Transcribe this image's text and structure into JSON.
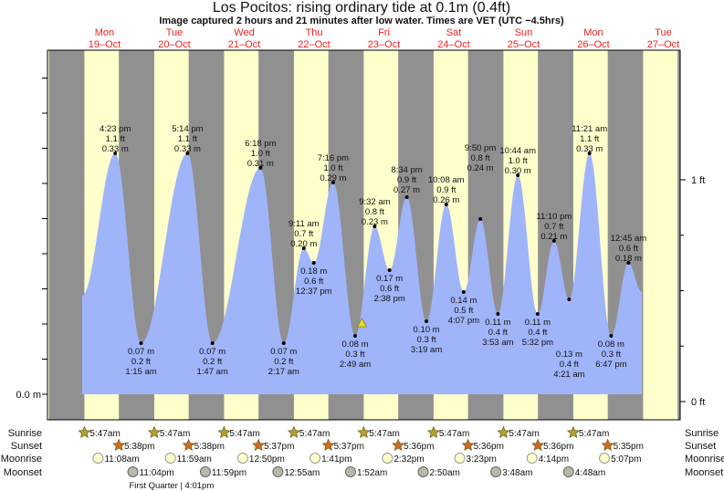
{
  "chart_data": {
    "type": "area",
    "title": "Los Pocitos: rising  ordinary tide at 0.1m (0.4ft)",
    "subtitle": "Image captured 2 hours and 21 minutes after low water. Times are VET (UTC −4.5hrs)",
    "left_axis": {
      "label": "0.0 m",
      "value_m": 0.0
    },
    "right_axis": [
      {
        "label": "1 ft",
        "value_ft": 1
      },
      {
        "label": "0 ft",
        "value_ft": 0
      }
    ],
    "days": [
      {
        "dow": "Mon",
        "date": "19–Oct"
      },
      {
        "dow": "Tue",
        "date": "20–Oct"
      },
      {
        "dow": "Wed",
        "date": "21–Oct"
      },
      {
        "dow": "Thu",
        "date": "22–Oct"
      },
      {
        "dow": "Fri",
        "date": "23–Oct"
      },
      {
        "dow": "Sat",
        "date": "24–Oct"
      },
      {
        "dow": "Sun",
        "date": "25–Oct"
      },
      {
        "dow": "Mon",
        "date": "26–Oct"
      },
      {
        "dow": "Tue",
        "date": "27–Oct"
      }
    ],
    "daylight": {
      "sunrise_h": 5.78,
      "sunset_h": 17.62
    },
    "current_time_day": 4.215,
    "current_level_m": 0.1,
    "extremes": [
      {
        "day": 0,
        "time": "4:23 pm",
        "h": 16.38,
        "m": 0.33,
        "ft": "1.1 ft",
        "type": "high"
      },
      {
        "day": 1,
        "time": "1:15 am",
        "h": 1.25,
        "m": 0.07,
        "ft": "0.2 ft",
        "type": "low"
      },
      {
        "day": 1,
        "time": "5:14 pm",
        "h": 17.23,
        "m": 0.33,
        "ft": "1.1 ft",
        "type": "high"
      },
      {
        "day": 2,
        "time": "1:47 am",
        "h": 1.78,
        "m": 0.07,
        "ft": "0.2 ft",
        "type": "low"
      },
      {
        "day": 2,
        "time": "6:18 pm",
        "h": 18.3,
        "m": 0.31,
        "ft": "1.0 ft",
        "type": "high"
      },
      {
        "day": 3,
        "time": "2:17 am",
        "h": 2.28,
        "m": 0.07,
        "ft": "0.2 ft",
        "type": "low"
      },
      {
        "day": 3,
        "time": "9:11 am",
        "h": 9.18,
        "m": 0.2,
        "ft": "0.7 ft",
        "type": "high"
      },
      {
        "day": 3,
        "time": "12:37 pm",
        "h": 12.62,
        "m": 0.18,
        "ft": "0.6 ft",
        "type": "low"
      },
      {
        "day": 3,
        "time": "7:16 pm",
        "h": 19.27,
        "m": 0.29,
        "ft": "1.0 ft",
        "type": "high"
      },
      {
        "day": 4,
        "time": "2:49 am",
        "h": 2.82,
        "m": 0.08,
        "ft": "0.3 ft",
        "type": "low"
      },
      {
        "day": 4,
        "time": "9:32 am",
        "h": 9.53,
        "m": 0.23,
        "ft": "0.8 ft",
        "type": "high"
      },
      {
        "day": 4,
        "time": "2:38 pm",
        "h": 14.63,
        "m": 0.17,
        "ft": "0.6 ft",
        "type": "low"
      },
      {
        "day": 4,
        "time": "8:34 pm",
        "h": 20.57,
        "m": 0.27,
        "ft": "0.9 ft",
        "type": "high"
      },
      {
        "day": 5,
        "time": "3:19 am",
        "h": 3.32,
        "m": 0.1,
        "ft": "0.3 ft",
        "type": "low"
      },
      {
        "day": 5,
        "time": "10:08 am",
        "h": 10.13,
        "m": 0.26,
        "ft": "0.9 ft",
        "type": "high"
      },
      {
        "day": 5,
        "time": "4:07 pm",
        "h": 16.12,
        "m": 0.14,
        "ft": "0.5 ft",
        "type": "low"
      },
      {
        "day": 5,
        "time": "9:50 pm",
        "h": 21.83,
        "m": 0.24,
        "ft": "0.8 ft",
        "type": "high"
      },
      {
        "day": 6,
        "time": "3:53 am",
        "h": 3.88,
        "m": 0.11,
        "ft": "0.4 ft",
        "type": "low"
      },
      {
        "day": 6,
        "time": "10:44 am",
        "h": 10.73,
        "m": 0.3,
        "ft": "1.0 ft",
        "type": "high"
      },
      {
        "day": 6,
        "time": "5:32 pm",
        "h": 17.53,
        "m": 0.11,
        "ft": "0.4 ft",
        "type": "low"
      },
      {
        "day": 6,
        "time": "11:10 pm",
        "h": 23.17,
        "m": 0.21,
        "ft": "0.7 ft",
        "type": "high"
      },
      {
        "day": 7,
        "time": "4:21 am",
        "h": 4.35,
        "m": 0.13,
        "ft": "0.4 ft",
        "type": "low"
      },
      {
        "day": 7,
        "time": "11:21 am",
        "h": 11.35,
        "m": 0.33,
        "ft": "1.1 ft",
        "type": "high"
      },
      {
        "day": 7,
        "time": "6:47 pm",
        "h": 18.78,
        "m": 0.08,
        "ft": "0.3 ft",
        "type": "low"
      },
      {
        "day": 8,
        "time": "12:45 am",
        "h": 0.75,
        "m": 0.18,
        "ft": "0.6 ft",
        "type": "high"
      }
    ],
    "ephemeris": {
      "labels": {
        "sunrise": "Sunrise",
        "sunset": "Sunset",
        "moonrise": "Moonrise",
        "moonset": "Moonset"
      },
      "sunrise": [
        {
          "day": 0,
          "time": "5:47am"
        },
        {
          "day": 1,
          "time": "5:47am"
        },
        {
          "day": 2,
          "time": "5:47am"
        },
        {
          "day": 3,
          "time": "5:47am"
        },
        {
          "day": 4,
          "time": "5:47am"
        },
        {
          "day": 5,
          "time": "5:47am"
        },
        {
          "day": 6,
          "time": "5:47am"
        },
        {
          "day": 7,
          "time": "5:47am"
        }
      ],
      "sunset": [
        {
          "day": 0,
          "time": "5:38pm"
        },
        {
          "day": 1,
          "time": "5:38pm"
        },
        {
          "day": 2,
          "time": "5:37pm"
        },
        {
          "day": 3,
          "time": "5:37pm"
        },
        {
          "day": 4,
          "time": "5:36pm"
        },
        {
          "day": 5,
          "time": "5:36pm"
        },
        {
          "day": 6,
          "time": "5:36pm"
        },
        {
          "day": 7,
          "time": "5:35pm"
        }
      ],
      "moonrise": [
        {
          "day": 0,
          "h": 11.13,
          "time": "11:08am"
        },
        {
          "day": 1,
          "h": 11.98,
          "time": "11:59am"
        },
        {
          "day": 2,
          "h": 12.83,
          "time": "12:50pm"
        },
        {
          "day": 3,
          "h": 13.68,
          "time": "1:41pm"
        },
        {
          "day": 4,
          "h": 14.53,
          "time": "2:32pm"
        },
        {
          "day": 5,
          "h": 15.38,
          "time": "3:23pm"
        },
        {
          "day": 6,
          "h": 16.23,
          "time": "4:14pm"
        },
        {
          "day": 7,
          "h": 17.12,
          "time": "5:07pm"
        }
      ],
      "moonset": [
        {
          "day": 0,
          "h": 23.07,
          "time": "11:04pm"
        },
        {
          "day": 1,
          "h": 23.98,
          "time": "11:59pm"
        },
        {
          "day": 3,
          "h": 0.92,
          "time": "12:55am"
        },
        {
          "day": 4,
          "h": 1.87,
          "time": "1:52am"
        },
        {
          "day": 5,
          "h": 2.83,
          "time": "2:50am"
        },
        {
          "day": 6,
          "h": 3.8,
          "time": "3:48am"
        },
        {
          "day": 7,
          "h": 4.8,
          "time": "4:48am"
        }
      ],
      "phase": {
        "day": 1,
        "h": 16.0,
        "text": "First Quarter | 4:01pm"
      }
    },
    "colors": {
      "water": "#a0b4fa",
      "day": "#ffffcc",
      "night": "#909090",
      "dates": "#ee2222",
      "sun": "#b0a030",
      "sunset": "#d06a20",
      "moonrise": "#ffffcc",
      "moonset": "#b8b8a8",
      "marker": "#e6e020"
    }
  }
}
